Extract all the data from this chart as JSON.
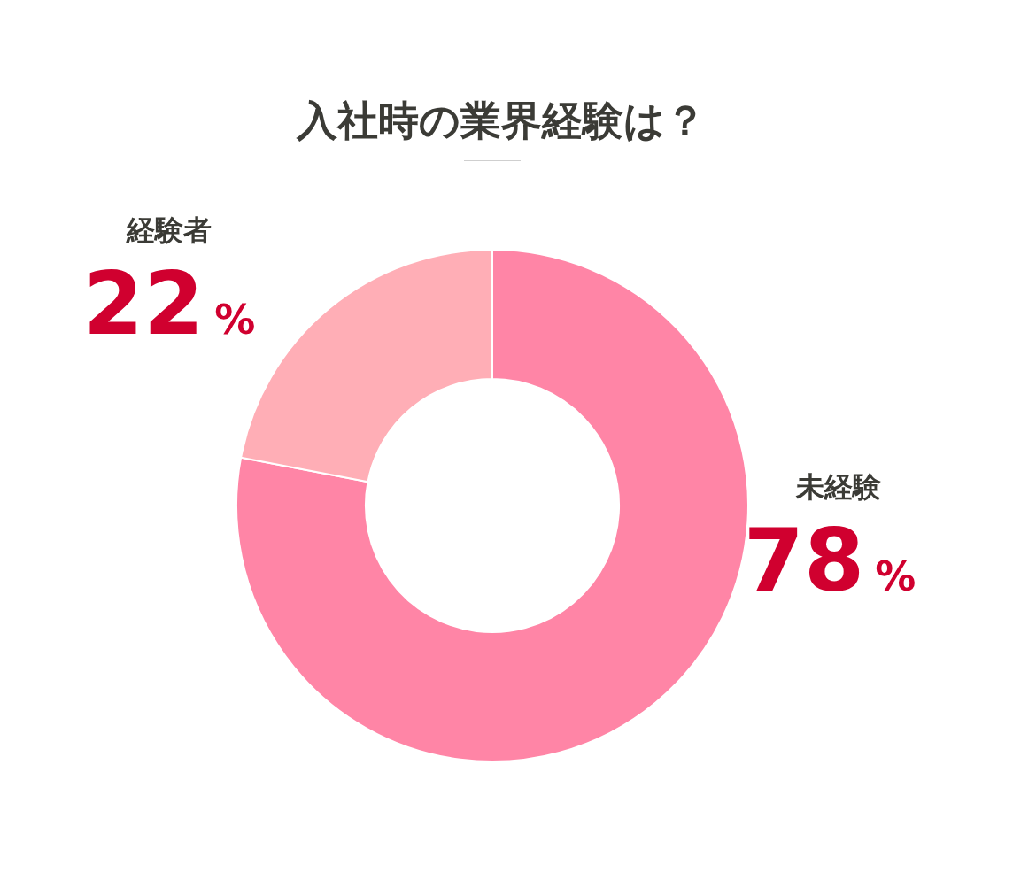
{
  "chart_data": {
    "type": "donut",
    "title": "入社時の業界経験は？",
    "categories": [
      "未経験",
      "経験者"
    ],
    "values": [
      78,
      22
    ],
    "colors": [
      "#ff85a6",
      "#ffaeb6"
    ],
    "value_labels": [
      "78%",
      "22%"
    ]
  }
}
